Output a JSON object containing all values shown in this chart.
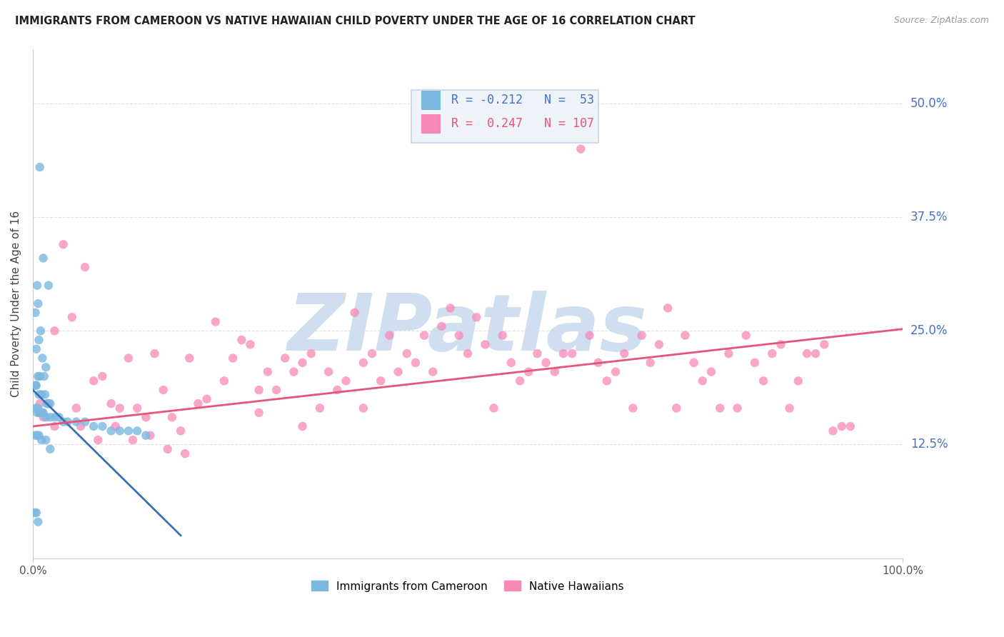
{
  "title": "IMMIGRANTS FROM CAMEROON VS NATIVE HAWAIIAN CHILD POVERTY UNDER THE AGE OF 16 CORRELATION CHART",
  "source": "Source: ZipAtlas.com",
  "ylabel": "Child Poverty Under the Age of 16",
  "legend_label_1": "Immigrants from Cameroon",
  "legend_label_2": "Native Hawaiians",
  "R1": -0.212,
  "N1": 53,
  "R2": 0.247,
  "N2": 107,
  "color1": "#7bb8e0",
  "color2": "#f888b8",
  "trend1_color": "#3a6fb5",
  "trend2_color": "#e8557a",
  "watermark": "ZIPatlas",
  "watermark_color": "#d0dff0",
  "xlim": [
    0.0,
    1.0
  ],
  "ylim": [
    0.0,
    0.56
  ],
  "ytick_vals": [
    0.0,
    0.125,
    0.25,
    0.375,
    0.5
  ],
  "ytick_labels": [
    "",
    "12.5%",
    "25.0%",
    "37.5%",
    "50.0%"
  ],
  "xtick_vals": [
    0.0,
    1.0
  ],
  "xtick_labels": [
    "0.0%",
    "100.0%"
  ],
  "background_color": "#ffffff",
  "grid_color": "#e0e0e0",
  "blue_trend_x": [
    0.0,
    0.17
  ],
  "blue_trend_y": [
    0.185,
    0.025
  ],
  "pink_trend_x": [
    0.0,
    1.0
  ],
  "pink_trend_y": [
    0.145,
    0.252
  ],
  "blue_x": [
    0.008,
    0.012,
    0.005,
    0.018,
    0.006,
    0.003,
    0.009,
    0.007,
    0.004,
    0.011,
    0.015,
    0.013,
    0.008,
    0.006,
    0.004,
    0.003,
    0.007,
    0.01,
    0.014,
    0.016,
    0.02,
    0.018,
    0.012,
    0.008,
    0.005,
    0.003,
    0.006,
    0.009,
    0.011,
    0.015,
    0.02,
    0.025,
    0.03,
    0.035,
    0.04,
    0.05,
    0.06,
    0.07,
    0.08,
    0.09,
    0.1,
    0.11,
    0.12,
    0.13,
    0.005,
    0.003,
    0.007,
    0.01,
    0.015,
    0.02,
    0.002,
    0.004,
    0.006
  ],
  "blue_y": [
    0.43,
    0.33,
    0.3,
    0.3,
    0.28,
    0.27,
    0.25,
    0.24,
    0.23,
    0.22,
    0.21,
    0.2,
    0.2,
    0.2,
    0.19,
    0.19,
    0.18,
    0.18,
    0.18,
    0.17,
    0.17,
    0.17,
    0.16,
    0.16,
    0.16,
    0.165,
    0.165,
    0.16,
    0.16,
    0.155,
    0.155,
    0.155,
    0.155,
    0.15,
    0.15,
    0.15,
    0.15,
    0.145,
    0.145,
    0.14,
    0.14,
    0.14,
    0.14,
    0.135,
    0.135,
    0.135,
    0.135,
    0.13,
    0.13,
    0.12,
    0.05,
    0.05,
    0.04
  ],
  "pink_x": [
    0.008,
    0.012,
    0.018,
    0.025,
    0.035,
    0.045,
    0.05,
    0.06,
    0.07,
    0.08,
    0.09,
    0.1,
    0.11,
    0.12,
    0.13,
    0.14,
    0.15,
    0.16,
    0.17,
    0.18,
    0.19,
    0.2,
    0.21,
    0.22,
    0.23,
    0.24,
    0.25,
    0.26,
    0.27,
    0.28,
    0.29,
    0.3,
    0.31,
    0.32,
    0.33,
    0.34,
    0.35,
    0.36,
    0.37,
    0.38,
    0.39,
    0.4,
    0.41,
    0.42,
    0.43,
    0.44,
    0.45,
    0.46,
    0.47,
    0.48,
    0.49,
    0.5,
    0.51,
    0.52,
    0.53,
    0.54,
    0.55,
    0.56,
    0.57,
    0.58,
    0.59,
    0.6,
    0.61,
    0.62,
    0.63,
    0.64,
    0.65,
    0.66,
    0.67,
    0.68,
    0.69,
    0.7,
    0.71,
    0.72,
    0.73,
    0.74,
    0.75,
    0.76,
    0.77,
    0.78,
    0.79,
    0.8,
    0.81,
    0.82,
    0.83,
    0.84,
    0.85,
    0.86,
    0.87,
    0.88,
    0.89,
    0.9,
    0.91,
    0.92,
    0.93,
    0.94,
    0.025,
    0.055,
    0.075,
    0.095,
    0.115,
    0.135,
    0.155,
    0.175,
    0.26,
    0.31,
    0.38
  ],
  "pink_y": [
    0.17,
    0.155,
    0.17,
    0.25,
    0.345,
    0.265,
    0.165,
    0.32,
    0.195,
    0.2,
    0.17,
    0.165,
    0.22,
    0.165,
    0.155,
    0.225,
    0.185,
    0.155,
    0.14,
    0.22,
    0.17,
    0.175,
    0.26,
    0.195,
    0.22,
    0.24,
    0.235,
    0.185,
    0.205,
    0.185,
    0.22,
    0.205,
    0.215,
    0.225,
    0.165,
    0.205,
    0.185,
    0.195,
    0.27,
    0.215,
    0.225,
    0.195,
    0.245,
    0.205,
    0.225,
    0.215,
    0.245,
    0.205,
    0.255,
    0.275,
    0.245,
    0.225,
    0.265,
    0.235,
    0.165,
    0.245,
    0.215,
    0.195,
    0.205,
    0.225,
    0.215,
    0.205,
    0.225,
    0.225,
    0.45,
    0.245,
    0.215,
    0.195,
    0.205,
    0.225,
    0.165,
    0.245,
    0.215,
    0.235,
    0.275,
    0.165,
    0.245,
    0.215,
    0.195,
    0.205,
    0.165,
    0.225,
    0.165,
    0.245,
    0.215,
    0.195,
    0.225,
    0.235,
    0.165,
    0.195,
    0.225,
    0.225,
    0.235,
    0.14,
    0.145,
    0.145,
    0.145,
    0.145,
    0.13,
    0.145,
    0.13,
    0.135,
    0.12,
    0.115,
    0.16,
    0.145,
    0.165
  ]
}
